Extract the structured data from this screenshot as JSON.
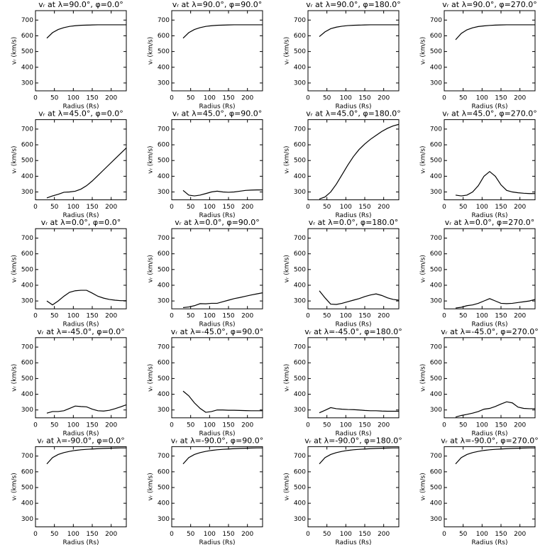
{
  "chart_data": [
    {
      "type": "line",
      "title": "vᵣ at λ=90.0°, φ=0.0°",
      "xlabel": "Radius (Rs)",
      "ylabel": "vᵣ (km/s)",
      "xlim": [
        0,
        240
      ],
      "ylim": [
        250,
        760
      ],
      "xticks": [
        0,
        50,
        100,
        150,
        200
      ],
      "yticks": [
        300,
        400,
        500,
        600,
        700
      ],
      "color": "#000000",
      "x": [
        30,
        45,
        60,
        75,
        90,
        105,
        120,
        135,
        150,
        165,
        180,
        195,
        210,
        225,
        240
      ],
      "values": [
        585,
        620,
        640,
        652,
        660,
        664,
        667,
        668,
        669,
        670,
        670,
        670,
        670,
        670,
        670
      ]
    },
    {
      "type": "line",
      "title": "vᵣ at λ=90.0°, φ=90.0°",
      "xlabel": "Radius (Rs)",
      "ylabel": "vᵣ (km/s)",
      "xlim": [
        0,
        240
      ],
      "ylim": [
        250,
        760
      ],
      "xticks": [
        0,
        50,
        100,
        150,
        200
      ],
      "yticks": [
        300,
        400,
        500,
        600,
        700
      ],
      "color": "#000000",
      "x": [
        30,
        45,
        60,
        75,
        90,
        105,
        120,
        135,
        150,
        165,
        180,
        195,
        210,
        225,
        240
      ],
      "values": [
        585,
        620,
        640,
        652,
        660,
        664,
        667,
        668,
        669,
        670,
        670,
        670,
        670,
        670,
        670
      ]
    },
    {
      "type": "line",
      "title": "vᵣ at λ=90.0°, φ=180.0°",
      "xlabel": "Radius (Rs)",
      "ylabel": "vᵣ (km/s)",
      "xlim": [
        0,
        240
      ],
      "ylim": [
        250,
        760
      ],
      "xticks": [
        0,
        50,
        100,
        150,
        200
      ],
      "yticks": [
        300,
        400,
        500,
        600,
        700
      ],
      "color": "#000000",
      "x": [
        30,
        45,
        60,
        75,
        90,
        105,
        120,
        135,
        150,
        165,
        180,
        195,
        210,
        225,
        240
      ],
      "values": [
        595,
        625,
        645,
        655,
        661,
        665,
        667,
        668,
        669,
        670,
        670,
        670,
        670,
        670,
        670
      ]
    },
    {
      "type": "line",
      "title": "vᵣ at λ=90.0°, φ=270.0°",
      "xlabel": "Radius (Rs)",
      "ylabel": "vᵣ (km/s)",
      "xlim": [
        0,
        240
      ],
      "ylim": [
        250,
        760
      ],
      "xticks": [
        0,
        50,
        100,
        150,
        200
      ],
      "yticks": [
        300,
        400,
        500,
        600,
        700
      ],
      "color": "#000000",
      "x": [
        30,
        45,
        60,
        75,
        90,
        105,
        120,
        135,
        150,
        165,
        180,
        195,
        210,
        225,
        240
      ],
      "values": [
        575,
        615,
        638,
        651,
        659,
        663,
        666,
        668,
        669,
        670,
        670,
        670,
        670,
        670,
        670
      ]
    },
    {
      "type": "line",
      "title": "vᵣ at λ=45.0°, φ=0.0°",
      "xlabel": "Radius (Rs)",
      "ylabel": "vᵣ (km/s)",
      "xlim": [
        0,
        240
      ],
      "ylim": [
        250,
        760
      ],
      "xticks": [
        0,
        50,
        100,
        150,
        200
      ],
      "yticks": [
        300,
        400,
        500,
        600,
        700
      ],
      "color": "#000000",
      "x": [
        30,
        45,
        60,
        75,
        90,
        105,
        120,
        135,
        150,
        165,
        180,
        195,
        210,
        225,
        240
      ],
      "values": [
        262,
        275,
        285,
        298,
        300,
        305,
        318,
        340,
        370,
        405,
        440,
        475,
        510,
        545,
        580
      ]
    },
    {
      "type": "line",
      "title": "vᵣ at λ=45.0°, φ=90.0°",
      "xlabel": "Radius (Rs)",
      "ylabel": "vᵣ (km/s)",
      "xlim": [
        0,
        240
      ],
      "ylim": [
        250,
        760
      ],
      "xticks": [
        0,
        50,
        100,
        150,
        200
      ],
      "yticks": [
        300,
        400,
        500,
        600,
        700
      ],
      "color": "#000000",
      "x": [
        30,
        45,
        60,
        75,
        90,
        105,
        120,
        135,
        150,
        165,
        180,
        195,
        210,
        225,
        240
      ],
      "values": [
        310,
        280,
        275,
        280,
        290,
        300,
        305,
        300,
        298,
        300,
        305,
        310,
        312,
        313,
        313
      ]
    },
    {
      "type": "line",
      "title": "vᵣ at λ=45.0°, φ=180.0°",
      "xlabel": "Radius (Rs)",
      "ylabel": "vᵣ (km/s)",
      "xlim": [
        0,
        240
      ],
      "ylim": [
        250,
        760
      ],
      "xticks": [
        0,
        50,
        100,
        150,
        200
      ],
      "yticks": [
        300,
        400,
        500,
        600,
        700
      ],
      "color": "#000000",
      "x": [
        30,
        45,
        60,
        75,
        90,
        105,
        120,
        135,
        150,
        165,
        180,
        195,
        210,
        225,
        240
      ],
      "values": [
        255,
        268,
        300,
        350,
        410,
        470,
        525,
        570,
        605,
        635,
        660,
        685,
        705,
        720,
        730
      ]
    },
    {
      "type": "line",
      "title": "vᵣ at λ=45.0°, φ=270.0°",
      "xlabel": "Radius (Rs)",
      "ylabel": "vᵣ (km/s)",
      "xlim": [
        0,
        240
      ],
      "ylim": [
        250,
        760
      ],
      "xticks": [
        0,
        50,
        100,
        150,
        200
      ],
      "yticks": [
        300,
        400,
        500,
        600,
        700
      ],
      "color": "#000000",
      "x": [
        30,
        45,
        60,
        75,
        90,
        105,
        120,
        135,
        150,
        165,
        180,
        195,
        210,
        225,
        240
      ],
      "values": [
        280,
        275,
        280,
        300,
        340,
        400,
        430,
        400,
        345,
        310,
        300,
        295,
        292,
        290,
        290
      ]
    },
    {
      "type": "line",
      "title": "vᵣ at λ=0.0°, φ=0.0°",
      "xlabel": "Radius (Rs)",
      "ylabel": "vᵣ (km/s)",
      "xlim": [
        0,
        240
      ],
      "ylim": [
        250,
        760
      ],
      "xticks": [
        0,
        50,
        100,
        150,
        200
      ],
      "yticks": [
        300,
        400,
        500,
        600,
        700
      ],
      "color": "#000000",
      "x": [
        30,
        45,
        60,
        75,
        90,
        105,
        120,
        135,
        150,
        165,
        180,
        195,
        210,
        225,
        240
      ],
      "values": [
        300,
        275,
        300,
        330,
        355,
        365,
        368,
        368,
        350,
        330,
        318,
        310,
        305,
        302,
        302
      ]
    },
    {
      "type": "line",
      "title": "vᵣ at λ=0.0°, φ=90.0°",
      "xlabel": "Radius (Rs)",
      "ylabel": "vᵣ (km/s)",
      "xlim": [
        0,
        240
      ],
      "ylim": [
        250,
        760
      ],
      "xticks": [
        0,
        50,
        100,
        150,
        200
      ],
      "yticks": [
        300,
        400,
        500,
        600,
        700
      ],
      "color": "#000000",
      "x": [
        30,
        45,
        60,
        75,
        90,
        105,
        120,
        135,
        150,
        165,
        180,
        195,
        210,
        225,
        240
      ],
      "values": [
        258,
        262,
        270,
        283,
        282,
        285,
        285,
        295,
        305,
        315,
        322,
        330,
        338,
        345,
        352
      ]
    },
    {
      "type": "line",
      "title": "vᵣ at λ=0.0°, φ=180.0°",
      "xlabel": "Radius (Rs)",
      "ylabel": "vᵣ (km/s)",
      "xlim": [
        0,
        240
      ],
      "ylim": [
        250,
        760
      ],
      "xticks": [
        0,
        50,
        100,
        150,
        200
      ],
      "yticks": [
        300,
        400,
        500,
        600,
        700
      ],
      "color": "#000000",
      "x": [
        30,
        45,
        60,
        75,
        90,
        105,
        120,
        135,
        150,
        165,
        180,
        195,
        210,
        225,
        240
      ],
      "values": [
        365,
        320,
        280,
        278,
        285,
        295,
        305,
        315,
        328,
        338,
        345,
        335,
        320,
        310,
        305
      ]
    },
    {
      "type": "line",
      "title": "vᵣ at λ=0.0°, φ=270.0°",
      "xlabel": "Radius (Rs)",
      "ylabel": "vᵣ (km/s)",
      "xlim": [
        0,
        240
      ],
      "ylim": [
        250,
        760
      ],
      "xticks": [
        0,
        50,
        100,
        150,
        200
      ],
      "yticks": [
        300,
        400,
        500,
        600,
        700
      ],
      "color": "#000000",
      "x": [
        30,
        45,
        60,
        75,
        90,
        105,
        120,
        135,
        150,
        165,
        180,
        195,
        210,
        225,
        240
      ],
      "values": [
        255,
        260,
        270,
        275,
        285,
        300,
        315,
        300,
        285,
        283,
        285,
        290,
        295,
        300,
        310
      ]
    },
    {
      "type": "line",
      "title": "vᵣ at λ=-45.0°, φ=0.0°",
      "xlabel": "Radius (Rs)",
      "ylabel": "vᵣ (km/s)",
      "xlim": [
        0,
        240
      ],
      "ylim": [
        250,
        760
      ],
      "xticks": [
        0,
        50,
        100,
        150,
        200
      ],
      "yticks": [
        300,
        400,
        500,
        600,
        700
      ],
      "color": "#000000",
      "x": [
        30,
        45,
        60,
        75,
        90,
        105,
        120,
        135,
        150,
        165,
        180,
        195,
        210,
        225,
        240
      ],
      "values": [
        280,
        290,
        290,
        295,
        310,
        325,
        322,
        320,
        305,
        295,
        293,
        298,
        308,
        320,
        333
      ]
    },
    {
      "type": "line",
      "title": "vᵣ at λ=-45.0°, φ=90.0°",
      "xlabel": "Radius (Rs)",
      "ylabel": "vᵣ (km/s)",
      "xlim": [
        0,
        240
      ],
      "ylim": [
        250,
        760
      ],
      "xticks": [
        0,
        50,
        100,
        150,
        200
      ],
      "yticks": [
        300,
        400,
        500,
        600,
        700
      ],
      "color": "#000000",
      "x": [
        30,
        45,
        60,
        75,
        90,
        105,
        120,
        135,
        150,
        165,
        180,
        195,
        210,
        225,
        240
      ],
      "values": [
        420,
        390,
        345,
        310,
        285,
        290,
        300,
        300,
        298,
        298,
        297,
        296,
        295,
        295,
        295
      ]
    },
    {
      "type": "line",
      "title": "vᵣ at λ=-45.0°, φ=180.0°",
      "xlabel": "Radius (Rs)",
      "ylabel": "vᵣ (km/s)",
      "xlim": [
        0,
        240
      ],
      "ylim": [
        250,
        760
      ],
      "xticks": [
        0,
        50,
        100,
        150,
        200
      ],
      "yticks": [
        300,
        400,
        500,
        600,
        700
      ],
      "color": "#000000",
      "x": [
        30,
        45,
        60,
        75,
        90,
        105,
        120,
        135,
        150,
        165,
        180,
        195,
        210,
        225,
        240
      ],
      "values": [
        282,
        298,
        315,
        308,
        305,
        303,
        302,
        300,
        297,
        295,
        295,
        293,
        292,
        292,
        292
      ]
    },
    {
      "type": "line",
      "title": "vᵣ at λ=-45.0°, φ=270.0°",
      "xlabel": "Radius (Rs)",
      "ylabel": "vᵣ (km/s)",
      "xlim": [
        0,
        240
      ],
      "ylim": [
        250,
        760
      ],
      "xticks": [
        0,
        50,
        100,
        150,
        200
      ],
      "yticks": [
        300,
        400,
        500,
        600,
        700
      ],
      "color": "#000000",
      "x": [
        30,
        45,
        60,
        75,
        90,
        105,
        120,
        135,
        150,
        165,
        180,
        195,
        210,
        225,
        240
      ],
      "values": [
        255,
        265,
        272,
        280,
        290,
        305,
        310,
        322,
        338,
        352,
        345,
        318,
        310,
        308,
        308
      ]
    },
    {
      "type": "line",
      "title": "vᵣ at λ=-90.0°, φ=0.0°",
      "xlabel": "Radius (Rs)",
      "ylabel": "vᵣ (km/s)",
      "xlim": [
        0,
        240
      ],
      "ylim": [
        250,
        760
      ],
      "xticks": [
        0,
        50,
        100,
        150,
        200
      ],
      "yticks": [
        300,
        400,
        500,
        600,
        700
      ],
      "color": "#000000",
      "x": [
        30,
        45,
        60,
        75,
        90,
        105,
        120,
        135,
        150,
        165,
        180,
        195,
        210,
        225,
        240
      ],
      "values": [
        650,
        690,
        710,
        722,
        730,
        736,
        740,
        743,
        745,
        747,
        749,
        750,
        751,
        752,
        752
      ]
    },
    {
      "type": "line",
      "title": "vᵣ at λ=-90.0°, φ=90.0°",
      "xlabel": "Radius (Rs)",
      "ylabel": "vᵣ (km/s)",
      "xlim": [
        0,
        240
      ],
      "ylim": [
        250,
        760
      ],
      "xticks": [
        0,
        50,
        100,
        150,
        200
      ],
      "yticks": [
        300,
        400,
        500,
        600,
        700
      ],
      "color": "#000000",
      "x": [
        30,
        45,
        60,
        75,
        90,
        105,
        120,
        135,
        150,
        165,
        180,
        195,
        210,
        225,
        240
      ],
      "values": [
        650,
        690,
        710,
        722,
        730,
        736,
        740,
        743,
        745,
        747,
        749,
        750,
        751,
        752,
        752
      ]
    },
    {
      "type": "line",
      "title": "vᵣ at λ=-90.0°, φ=180.0°",
      "xlabel": "Radius (Rs)",
      "ylabel": "vᵣ (km/s)",
      "xlim": [
        0,
        240
      ],
      "ylim": [
        250,
        760
      ],
      "xticks": [
        0,
        50,
        100,
        150,
        200
      ],
      "yticks": [
        300,
        400,
        500,
        600,
        700
      ],
      "color": "#000000",
      "x": [
        30,
        45,
        60,
        75,
        90,
        105,
        120,
        135,
        150,
        165,
        180,
        195,
        210,
        225,
        240
      ],
      "values": [
        650,
        690,
        710,
        722,
        730,
        736,
        740,
        743,
        745,
        747,
        749,
        750,
        751,
        752,
        752
      ]
    },
    {
      "type": "line",
      "title": "vᵣ at λ=-90.0°, φ=270.0°",
      "xlabel": "Radius (Rs)",
      "ylabel": "vᵣ (km/s)",
      "xlim": [
        0,
        240
      ],
      "ylim": [
        250,
        760
      ],
      "xticks": [
        0,
        50,
        100,
        150,
        200
      ],
      "yticks": [
        300,
        400,
        500,
        600,
        700
      ],
      "color": "#000000",
      "x": [
        30,
        45,
        60,
        75,
        90,
        105,
        120,
        135,
        150,
        165,
        180,
        195,
        210,
        225,
        240
      ],
      "values": [
        650,
        690,
        710,
        722,
        730,
        736,
        740,
        743,
        745,
        747,
        749,
        750,
        751,
        752,
        752
      ]
    }
  ]
}
